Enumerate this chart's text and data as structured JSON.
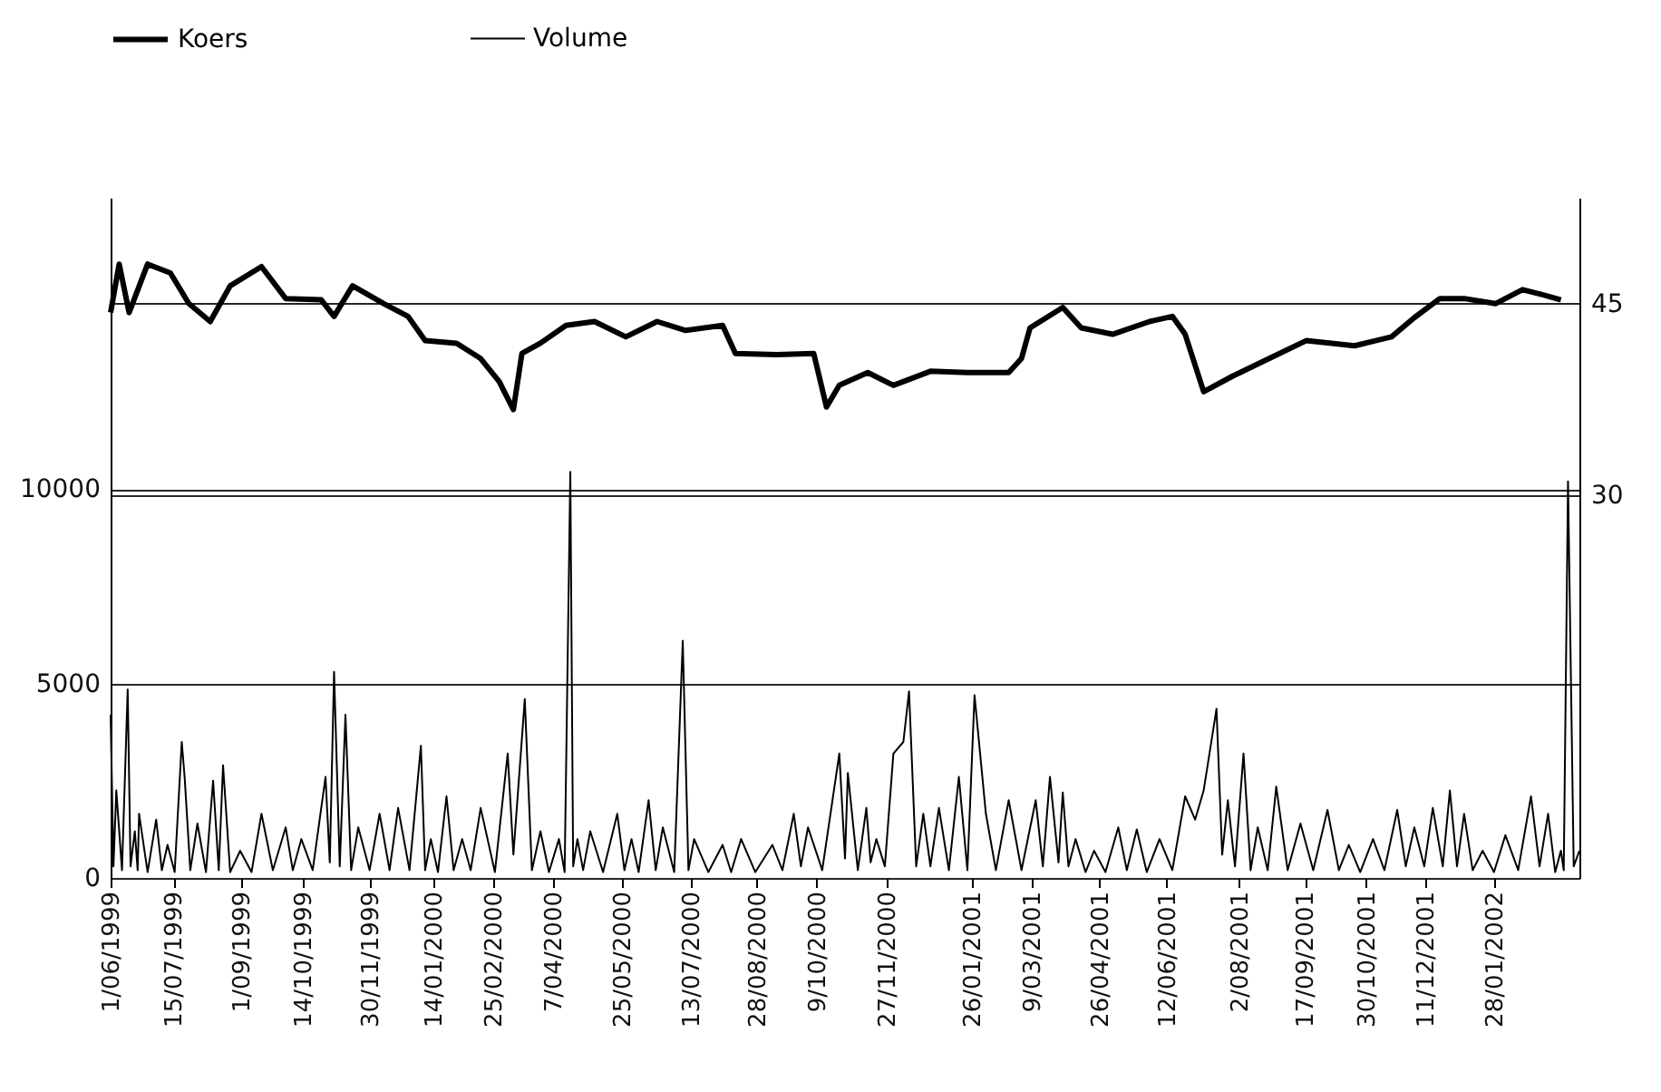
{
  "chart_data": {
    "type": "line",
    "grid": "y",
    "legend": "top",
    "xlim": [
      "1999-06-01",
      "2002-03-29"
    ],
    "xticks": [
      {
        "value": "1999-06-01",
        "label": "1/06/1999"
      },
      {
        "value": "1999-07-15",
        "label": "15/07/1999"
      },
      {
        "value": "1999-09-01",
        "label": "1/09/1999"
      },
      {
        "value": "1999-10-14",
        "label": "14/10/1999"
      },
      {
        "value": "1999-11-30",
        "label": "30/11/1999"
      },
      {
        "value": "2000-01-14",
        "label": "14/01/2000"
      },
      {
        "value": "2000-02-25",
        "label": "25/02/2000"
      },
      {
        "value": "2000-04-07",
        "label": "7/04/2000"
      },
      {
        "value": "2000-05-25",
        "label": "25/05/2000"
      },
      {
        "value": "2000-07-13",
        "label": "13/07/2000"
      },
      {
        "value": "2000-08-28",
        "label": "28/08/2000"
      },
      {
        "value": "2000-10-09",
        "label": "9/10/2000"
      },
      {
        "value": "2000-11-27",
        "label": "27/11/2000"
      },
      {
        "value": "2001-01-26",
        "label": "26/01/2001"
      },
      {
        "value": "2001-03-09",
        "label": "9/03/2001"
      },
      {
        "value": "2001-04-26",
        "label": "26/04/2001"
      },
      {
        "value": "2001-06-12",
        "label": "12/06/2001"
      },
      {
        "value": "2001-08-02",
        "label": "2/08/2001"
      },
      {
        "value": "2001-09-17",
        "label": "17/09/2001"
      },
      {
        "value": "2001-10-30",
        "label": "30/10/2001"
      },
      {
        "value": "2001-12-11",
        "label": "11/12/2001"
      },
      {
        "value": "2002-01-28",
        "label": "28/01/2002"
      }
    ],
    "ylim": [
      0,
      17500
    ],
    "yticks": [
      0,
      5000,
      10000
    ],
    "y2lim": [
      0,
      53.3
    ],
    "y2ticks": [
      30,
      45
    ],
    "series": [
      {
        "name": "Koers",
        "color": "#000000",
        "axis": "y2",
        "x": [
          "1999-06-01",
          "1999-06-07",
          "1999-06-14",
          "1999-06-27",
          "1999-07-13",
          "1999-07-26",
          "1999-08-10",
          "1999-08-24",
          "1999-09-15",
          "1999-10-02",
          "1999-10-27",
          "1999-11-05",
          "1999-11-18",
          "1999-12-10",
          "1999-12-27",
          "2000-01-08",
          "2000-01-30",
          "2000-02-16",
          "2000-02-29",
          "2000-03-10",
          "2000-03-16",
          "2000-03-29",
          "2000-04-16",
          "2000-05-06",
          "2000-05-28",
          "2000-06-19",
          "2000-07-09",
          "2000-08-04",
          "2000-08-13",
          "2000-09-11",
          "2000-10-07",
          "2000-10-16",
          "2000-10-25",
          "2000-11-14",
          "2000-12-02",
          "2000-12-28",
          "2001-01-23",
          "2001-02-21",
          "2001-03-02",
          "2001-03-08",
          "2001-03-31",
          "2001-04-13",
          "2001-05-05",
          "2001-05-31",
          "2001-06-16",
          "2001-06-25",
          "2001-07-08",
          "2001-07-28",
          "2001-08-23",
          "2001-09-18",
          "2001-10-22",
          "2001-11-17",
          "2001-12-03",
          "2001-12-21",
          "2002-01-07",
          "2002-01-29",
          "2002-02-17",
          "2002-03-03",
          "2002-03-16"
        ],
        "values": [
          44.3,
          48.1,
          44.3,
          48.1,
          47.4,
          45.0,
          43.6,
          46.4,
          47.9,
          45.4,
          45.3,
          44.0,
          46.4,
          45.0,
          44.0,
          42.1,
          41.9,
          40.7,
          38.9,
          36.7,
          41.1,
          41.9,
          43.3,
          43.6,
          42.4,
          43.6,
          42.9,
          43.3,
          41.1,
          41.0,
          41.1,
          36.9,
          38.6,
          39.6,
          38.6,
          39.7,
          39.6,
          39.6,
          40.7,
          43.1,
          44.7,
          43.1,
          42.6,
          43.6,
          44.0,
          42.6,
          38.1,
          39.3,
          40.7,
          42.1,
          41.7,
          42.4,
          43.9,
          45.4,
          45.4,
          45.0,
          46.1,
          45.7,
          45.3
        ]
      },
      {
        "name": "Volume",
        "color": "#000000",
        "axis": "y",
        "x": [
          "1999-06-01",
          "1999-06-03",
          "1999-06-05",
          "1999-06-09",
          "1999-06-13",
          "1999-06-15",
          "1999-06-18",
          "1999-06-20",
          "1999-06-21",
          "1999-06-27",
          "1999-07-03",
          "1999-07-07",
          "1999-07-11",
          "1999-07-16",
          "1999-07-21",
          "1999-07-23",
          "1999-07-27",
          "1999-08-01",
          "1999-08-07",
          "1999-08-12",
          "1999-08-16",
          "1999-08-19",
          "1999-08-24",
          "1999-08-31",
          "1999-09-08",
          "1999-09-15",
          "1999-09-23",
          "1999-10-02",
          "1999-10-07",
          "1999-10-13",
          "1999-10-21",
          "1999-10-30",
          "1999-11-02",
          "1999-11-05",
          "1999-11-09",
          "1999-11-13",
          "1999-11-17",
          "1999-11-22",
          "1999-11-30",
          "1999-12-07",
          "1999-12-14",
          "1999-12-20",
          "1999-12-28",
          "2000-01-05",
          "2000-01-08",
          "2000-01-12",
          "2000-01-17",
          "2000-01-23",
          "2000-01-28",
          "2000-02-03",
          "2000-02-09",
          "2000-02-16",
          "2000-02-26",
          "2000-03-06",
          "2000-03-10",
          "2000-03-14",
          "2000-03-18",
          "2000-03-23",
          "2000-03-29",
          "2000-04-04",
          "2000-04-11",
          "2000-04-15",
          "2000-04-19",
          "2000-04-21",
          "2000-04-24",
          "2000-04-28",
          "2000-05-03",
          "2000-05-12",
          "2000-05-22",
          "2000-05-27",
          "2000-06-01",
          "2000-06-06",
          "2000-06-13",
          "2000-06-18",
          "2000-06-23",
          "2000-07-01",
          "2000-07-07",
          "2000-07-11",
          "2000-07-15",
          "2000-07-25",
          "2000-08-04",
          "2000-08-10",
          "2000-08-17",
          "2000-08-27",
          "2000-09-08",
          "2000-09-15",
          "2000-09-23",
          "2000-09-28",
          "2000-10-03",
          "2000-10-13",
          "2000-10-25",
          "2000-10-29",
          "2000-10-31",
          "2000-11-07",
          "2000-11-13",
          "2000-11-16",
          "2000-11-20",
          "2000-11-26",
          "2000-12-02",
          "2000-12-09",
          "2000-12-13",
          "2000-12-18",
          "2000-12-23",
          "2000-12-28",
          "2001-01-03",
          "2001-01-10",
          "2001-01-17",
          "2001-01-23",
          "2001-01-28",
          "2001-02-05",
          "2001-02-12",
          "2001-02-21",
          "2001-03-02",
          "2001-03-12",
          "2001-03-17",
          "2001-03-22",
          "2001-03-28",
          "2001-03-31",
          "2001-04-04",
          "2001-04-09",
          "2001-04-16",
          "2001-04-22",
          "2001-04-30",
          "2001-05-09",
          "2001-05-15",
          "2001-05-22",
          "2001-05-29",
          "2001-06-07",
          "2001-06-16",
          "2001-06-25",
          "2001-07-02",
          "2001-07-08",
          "2001-07-17",
          "2001-07-21",
          "2001-07-25",
          "2001-07-30",
          "2001-08-05",
          "2001-08-10",
          "2001-08-15",
          "2001-08-22",
          "2001-08-28",
          "2001-09-05",
          "2001-09-14",
          "2001-09-23",
          "2001-10-03",
          "2001-10-11",
          "2001-10-18",
          "2001-10-26",
          "2001-11-04",
          "2001-11-12",
          "2001-11-21",
          "2001-11-27",
          "2001-12-03",
          "2001-12-10",
          "2001-12-16",
          "2001-12-23",
          "2001-12-28",
          "2002-01-02",
          "2002-01-07",
          "2002-01-13",
          "2002-01-20",
          "2002-01-28",
          "2002-02-05",
          "2002-02-14",
          "2002-02-23",
          "2002-03-01",
          "2002-03-07",
          "2002-03-12",
          "2002-03-16",
          "2002-03-18",
          "2002-03-21",
          "2002-03-25",
          "2002-03-29"
        ],
        "values": [
          4200,
          300,
          2250,
          200,
          4850,
          300,
          1200,
          200,
          1650,
          150,
          1500,
          200,
          850,
          150,
          3500,
          2600,
          200,
          1400,
          150,
          2500,
          200,
          2900,
          150,
          700,
          150,
          1650,
          200,
          1300,
          200,
          1000,
          200,
          2600,
          400,
          5300,
          300,
          4200,
          200,
          1300,
          200,
          1650,
          200,
          1800,
          200,
          3400,
          200,
          1000,
          150,
          2100,
          200,
          1000,
          200,
          1800,
          150,
          3200,
          600,
          2600,
          4600,
          200,
          1200,
          150,
          1000,
          150,
          10450,
          300,
          1000,
          200,
          1200,
          150,
          1650,
          200,
          1000,
          150,
          2000,
          200,
          1300,
          150,
          6100,
          200,
          1000,
          150,
          850,
          150,
          1000,
          150,
          850,
          200,
          1650,
          300,
          1300,
          200,
          3200,
          500,
          2700,
          200,
          1800,
          400,
          1000,
          300,
          3200,
          3500,
          4800,
          300,
          1650,
          300,
          1800,
          200,
          2600,
          200,
          4700,
          1650,
          200,
          2000,
          200,
          2000,
          300,
          2600,
          400,
          2200,
          300,
          1000,
          150,
          700,
          150,
          1300,
          200,
          1250,
          150,
          1000,
          200,
          2100,
          1500,
          2250,
          4350,
          600,
          2000,
          300,
          3200,
          200,
          1300,
          200,
          2350,
          200,
          1400,
          200,
          1750,
          200,
          850,
          150,
          1000,
          200,
          1750,
          300,
          1300,
          300,
          1800,
          300,
          2250,
          300,
          1650,
          200,
          700,
          150,
          1100,
          200,
          2100,
          300,
          1650,
          150,
          700,
          200,
          10200,
          300,
          700
        ]
      }
    ]
  }
}
